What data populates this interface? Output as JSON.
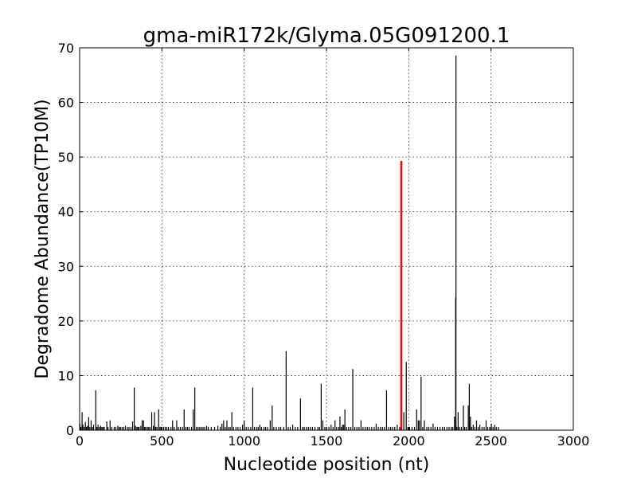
{
  "chart_data": {
    "type": "bar",
    "title": "gma-miR172k/Glyma.05G091200.1",
    "xlabel": "Nucleotide position (nt)",
    "ylabel": "Degradome Abundance(TP10M)",
    "xlim": [
      0,
      3000
    ],
    "ylim": [
      0,
      70
    ],
    "xticks": [
      0,
      500,
      1000,
      1500,
      2000,
      2500,
      3000
    ],
    "yticks": [
      0,
      10,
      20,
      30,
      40,
      50,
      60,
      70
    ],
    "xtick_labels": [
      "0",
      "500",
      "1000",
      "1500",
      "2000",
      "2500",
      "3000"
    ],
    "ytick_labels": [
      "0",
      "10",
      "20",
      "30",
      "40",
      "50",
      "60",
      "70"
    ],
    "grid": true,
    "series": [
      {
        "color": "#000000",
        "points": [
          [
            2,
            1.2
          ],
          [
            8,
            0.6
          ],
          [
            15,
            3.3
          ],
          [
            20,
            1.0
          ],
          [
            28,
            0.6
          ],
          [
            35,
            1.5
          ],
          [
            42,
            0.6
          ],
          [
            48,
            0.8
          ],
          [
            55,
            2.4
          ],
          [
            62,
            0.6
          ],
          [
            70,
            1.8
          ],
          [
            78,
            0.6
          ],
          [
            85,
            1.0
          ],
          [
            98,
            7.3
          ],
          [
            105,
            0.6
          ],
          [
            112,
            1.0
          ],
          [
            120,
            0.6
          ],
          [
            128,
            0.8
          ],
          [
            135,
            0.6
          ],
          [
            142,
            0.6
          ],
          [
            150,
            0.6
          ],
          [
            165,
            1.6
          ],
          [
            172,
            0.6
          ],
          [
            185,
            1.8
          ],
          [
            195,
            0.6
          ],
          [
            210,
            0.6
          ],
          [
            220,
            0.6
          ],
          [
            232,
            0.8
          ],
          [
            240,
            0.6
          ],
          [
            248,
            0.6
          ],
          [
            258,
            0.6
          ],
          [
            268,
            0.6
          ],
          [
            278,
            0.8
          ],
          [
            290,
            0.6
          ],
          [
            300,
            0.6
          ],
          [
            312,
            0.6
          ],
          [
            322,
            1.6
          ],
          [
            332,
            7.8
          ],
          [
            340,
            0.8
          ],
          [
            348,
            0.6
          ],
          [
            355,
            0.6
          ],
          [
            362,
            0.6
          ],
          [
            372,
            0.8
          ],
          [
            380,
            1.8
          ],
          [
            388,
            1.8
          ],
          [
            395,
            0.6
          ],
          [
            402,
            0.6
          ],
          [
            412,
            0.6
          ],
          [
            420,
            0.6
          ],
          [
            428,
            0.6
          ],
          [
            438,
            3.3
          ],
          [
            448,
            0.8
          ],
          [
            455,
            3.3
          ],
          [
            462,
            0.6
          ],
          [
            470,
            0.6
          ],
          [
            480,
            3.8
          ],
          [
            488,
            0.6
          ],
          [
            495,
            0.6
          ],
          [
            510,
            0.6
          ],
          [
            520,
            0.6
          ],
          [
            530,
            0.6
          ],
          [
            540,
            0.6
          ],
          [
            555,
            0.6
          ],
          [
            565,
            1.8
          ],
          [
            575,
            0.6
          ],
          [
            590,
            1.8
          ],
          [
            600,
            0.6
          ],
          [
            612,
            0.6
          ],
          [
            625,
            0.6
          ],
          [
            635,
            3.8
          ],
          [
            645,
            0.6
          ],
          [
            655,
            0.6
          ],
          [
            665,
            0.6
          ],
          [
            680,
            0.6
          ],
          [
            690,
            3.8
          ],
          [
            700,
            7.8
          ],
          [
            710,
            0.6
          ],
          [
            720,
            0.6
          ],
          [
            730,
            0.6
          ],
          [
            740,
            0.6
          ],
          [
            750,
            0.6
          ],
          [
            760,
            0.6
          ],
          [
            772,
            0.8
          ],
          [
            782,
            0.6
          ],
          [
            800,
            0.6
          ],
          [
            820,
            0.6
          ],
          [
            840,
            0.8
          ],
          [
            855,
            0.6
          ],
          [
            865,
            1.2
          ],
          [
            875,
            1.8
          ],
          [
            885,
            0.6
          ],
          [
            895,
            1.8
          ],
          [
            905,
            0.6
          ],
          [
            915,
            0.6
          ],
          [
            925,
            3.3
          ],
          [
            935,
            0.6
          ],
          [
            950,
            0.6
          ],
          [
            962,
            0.6
          ],
          [
            975,
            0.6
          ],
          [
            990,
            1.0
          ],
          [
            1000,
            1.8
          ],
          [
            1012,
            0.6
          ],
          [
            1025,
            0.6
          ],
          [
            1040,
            0.6
          ],
          [
            1052,
            7.8
          ],
          [
            1062,
            0.6
          ],
          [
            1075,
            0.6
          ],
          [
            1085,
            0.6
          ],
          [
            1095,
            1.0
          ],
          [
            1105,
            0.6
          ],
          [
            1120,
            0.6
          ],
          [
            1130,
            0.6
          ],
          [
            1142,
            0.6
          ],
          [
            1158,
            1.8
          ],
          [
            1170,
            4.5
          ],
          [
            1180,
            0.6
          ],
          [
            1195,
            0.6
          ],
          [
            1210,
            0.6
          ],
          [
            1222,
            0.6
          ],
          [
            1240,
            0.6
          ],
          [
            1255,
            14.5
          ],
          [
            1268,
            0.6
          ],
          [
            1280,
            0.6
          ],
          [
            1295,
            1.0
          ],
          [
            1310,
            0.6
          ],
          [
            1325,
            0.6
          ],
          [
            1342,
            5.8
          ],
          [
            1355,
            0.6
          ],
          [
            1365,
            0.6
          ],
          [
            1378,
            0.6
          ],
          [
            1390,
            0.6
          ],
          [
            1402,
            0.6
          ],
          [
            1415,
            0.6
          ],
          [
            1430,
            0.6
          ],
          [
            1448,
            0.6
          ],
          [
            1458,
            0.6
          ],
          [
            1468,
            8.5
          ],
          [
            1478,
            1.8
          ],
          [
            1490,
            0.6
          ],
          [
            1502,
            0.6
          ],
          [
            1515,
            0.6
          ],
          [
            1528,
            1.0
          ],
          [
            1540,
            0.6
          ],
          [
            1552,
            1.8
          ],
          [
            1562,
            0.6
          ],
          [
            1575,
            0.6
          ],
          [
            1582,
            2.5
          ],
          [
            1590,
            0.6
          ],
          [
            1598,
            1.0
          ],
          [
            1605,
            1.0
          ],
          [
            1612,
            3.8
          ],
          [
            1622,
            0.6
          ],
          [
            1635,
            0.6
          ],
          [
            1648,
            0.6
          ],
          [
            1660,
            11.2
          ],
          [
            1672,
            0.6
          ],
          [
            1685,
            0.6
          ],
          [
            1698,
            0.6
          ],
          [
            1710,
            1.8
          ],
          [
            1722,
            0.6
          ],
          [
            1735,
            0.6
          ],
          [
            1748,
            0.6
          ],
          [
            1760,
            0.6
          ],
          [
            1775,
            0.6
          ],
          [
            1790,
            0.6
          ],
          [
            1802,
            1.2
          ],
          [
            1815,
            0.6
          ],
          [
            1828,
            0.6
          ],
          [
            1840,
            0.6
          ],
          [
            1852,
            0.6
          ],
          [
            1865,
            7.3
          ],
          [
            1878,
            0.6
          ],
          [
            1890,
            0.6
          ],
          [
            1902,
            0.6
          ],
          [
            1915,
            0.6
          ],
          [
            1930,
            1.0
          ],
          [
            1945,
            0.6
          ],
          [
            1970,
            3.3
          ],
          [
            1985,
            12.5
          ],
          [
            1995,
            0.6
          ],
          [
            2005,
            0.6
          ],
          [
            2020,
            0.6
          ],
          [
            2035,
            0.6
          ],
          [
            2048,
            3.8
          ],
          [
            2058,
            1.8
          ],
          [
            2065,
            1.8
          ],
          [
            2075,
            9.8
          ],
          [
            2085,
            0.6
          ],
          [
            2095,
            1.8
          ],
          [
            2110,
            0.6
          ],
          [
            2122,
            0.6
          ],
          [
            2135,
            0.6
          ],
          [
            2148,
            1.2
          ],
          [
            2160,
            0.6
          ],
          [
            2175,
            0.6
          ],
          [
            2190,
            0.6
          ],
          [
            2205,
            0.6
          ],
          [
            2218,
            0.6
          ],
          [
            2232,
            0.6
          ],
          [
            2245,
            0.6
          ],
          [
            2258,
            0.6
          ],
          [
            2268,
            0.6
          ],
          [
            2278,
            2.5
          ],
          [
            2285,
            24.3
          ],
          [
            2287,
            68.6
          ],
          [
            2292,
            0.6
          ],
          [
            2300,
            3.3
          ],
          [
            2308,
            0.6
          ],
          [
            2320,
            0.6
          ],
          [
            2332,
            4.5
          ],
          [
            2340,
            0.6
          ],
          [
            2350,
            0.6
          ],
          [
            2362,
            4.5
          ],
          [
            2368,
            8.5
          ],
          [
            2375,
            2.5
          ],
          [
            2382,
            0.6
          ],
          [
            2392,
            1.0
          ],
          [
            2402,
            0.6
          ],
          [
            2412,
            1.8
          ],
          [
            2422,
            0.6
          ],
          [
            2432,
            1.0
          ],
          [
            2445,
            0.6
          ],
          [
            2458,
            0.6
          ],
          [
            2470,
            1.8
          ],
          [
            2480,
            0.6
          ],
          [
            2492,
            0.6
          ],
          [
            2502,
            1.2
          ],
          [
            2512,
            0.6
          ],
          [
            2522,
            1.0
          ],
          [
            2532,
            0.6
          ],
          [
            2545,
            0.6
          ]
        ]
      },
      {
        "color": "#ff0000",
        "points": [
          [
            1955,
            49.3
          ]
        ]
      }
    ]
  }
}
